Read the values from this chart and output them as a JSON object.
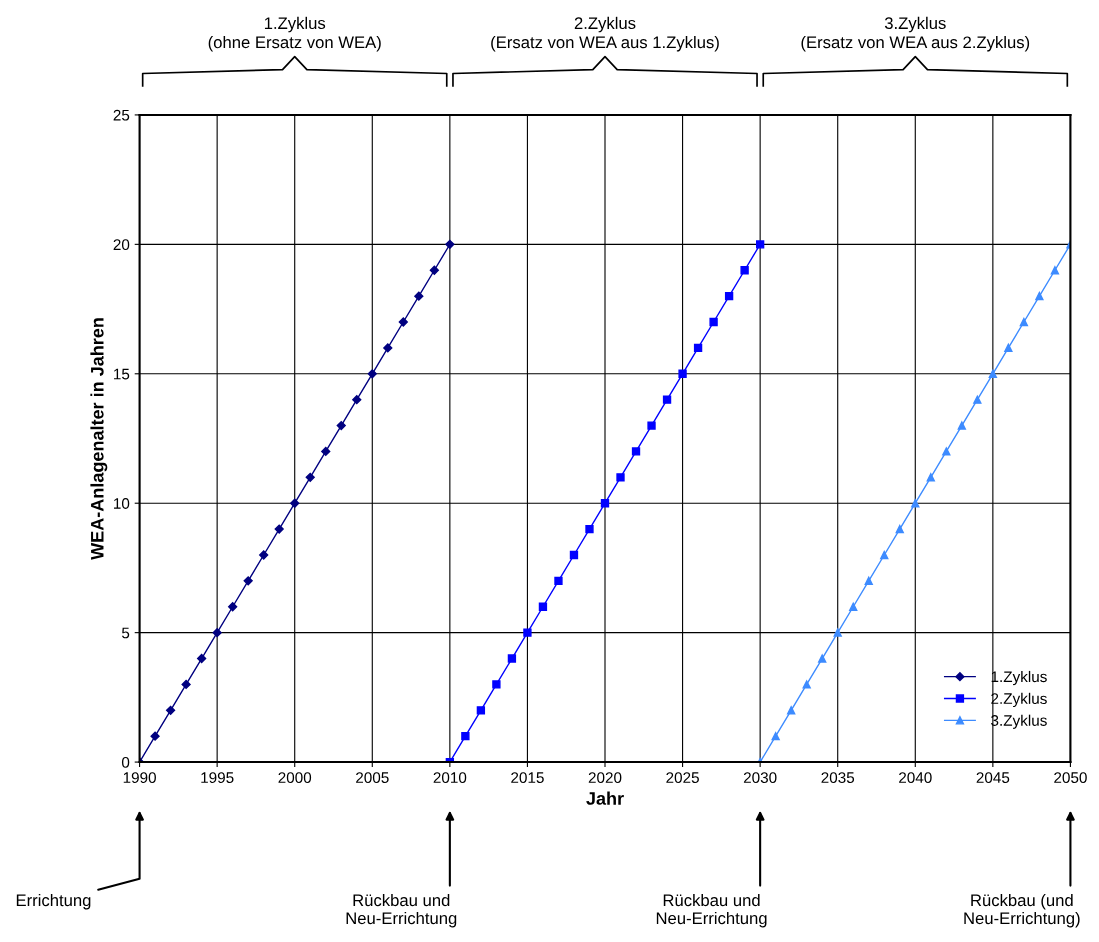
{
  "chart_data": {
    "type": "line",
    "xlabel": "Jahr",
    "ylabel": "WEA-Anlagenalter in Jahren",
    "xlim": [
      1990,
      2050
    ],
    "xticks": [
      1990,
      1995,
      2000,
      2005,
      2010,
      2015,
      2020,
      2025,
      2030,
      2035,
      2040,
      2045,
      2050
    ],
    "ylim": [
      0,
      25
    ],
    "yticks": [
      0,
      5,
      10,
      15,
      20,
      25
    ],
    "grid": true,
    "legend": "bottom right",
    "line_style": "solid",
    "series": [
      {
        "name": "1.Zyklus",
        "color": "#000080",
        "marker": "diamond",
        "x": [
          1990,
          1991,
          1992,
          1993,
          1994,
          1995,
          1996,
          1997,
          1998,
          1999,
          2000,
          2001,
          2002,
          2003,
          2004,
          2005,
          2006,
          2007,
          2008,
          2009,
          2010
        ],
        "values": [
          0,
          1,
          2,
          3,
          4,
          5,
          6,
          7,
          8,
          9,
          10,
          11,
          12,
          13,
          14,
          15,
          16,
          17,
          18,
          19,
          20
        ]
      },
      {
        "name": "2.Zyklus",
        "color": "#0000ff",
        "marker": "square",
        "x": [
          2010,
          2011,
          2012,
          2013,
          2014,
          2015,
          2016,
          2017,
          2018,
          2019,
          2020,
          2021,
          2022,
          2023,
          2024,
          2025,
          2026,
          2027,
          2028,
          2029,
          2030
        ],
        "values": [
          0,
          1,
          2,
          3,
          4,
          5,
          6,
          7,
          8,
          9,
          10,
          11,
          12,
          13,
          14,
          15,
          16,
          17,
          18,
          19,
          20
        ]
      },
      {
        "name": "3.Zyklus",
        "color": "#3d8bff",
        "marker": "triangle",
        "x": [
          2030,
          2031,
          2032,
          2033,
          2034,
          2035,
          2036,
          2037,
          2038,
          2039,
          2040,
          2041,
          2042,
          2043,
          2044,
          2045,
          2046,
          2047,
          2048,
          2049,
          2050
        ],
        "values": [
          0,
          1,
          2,
          3,
          4,
          5,
          6,
          7,
          8,
          9,
          10,
          11,
          12,
          13,
          14,
          15,
          16,
          17,
          18,
          19,
          20
        ]
      }
    ],
    "annotations": [
      "1.Zyklus\n(ohne Ersatz von WEA)",
      "2.Zyklus\n(Ersatz von WEA aus 1.Zyklus)",
      "3.Zyklus\n(Ersatz von WEA aus 2.Zyklus)",
      "Errichtung",
      "Rückbau und\nNeu-Errichtung",
      "Rückbau und\nNeu-Errichtung",
      "Rückbau (und\nNeu-Errichtung)"
    ]
  }
}
